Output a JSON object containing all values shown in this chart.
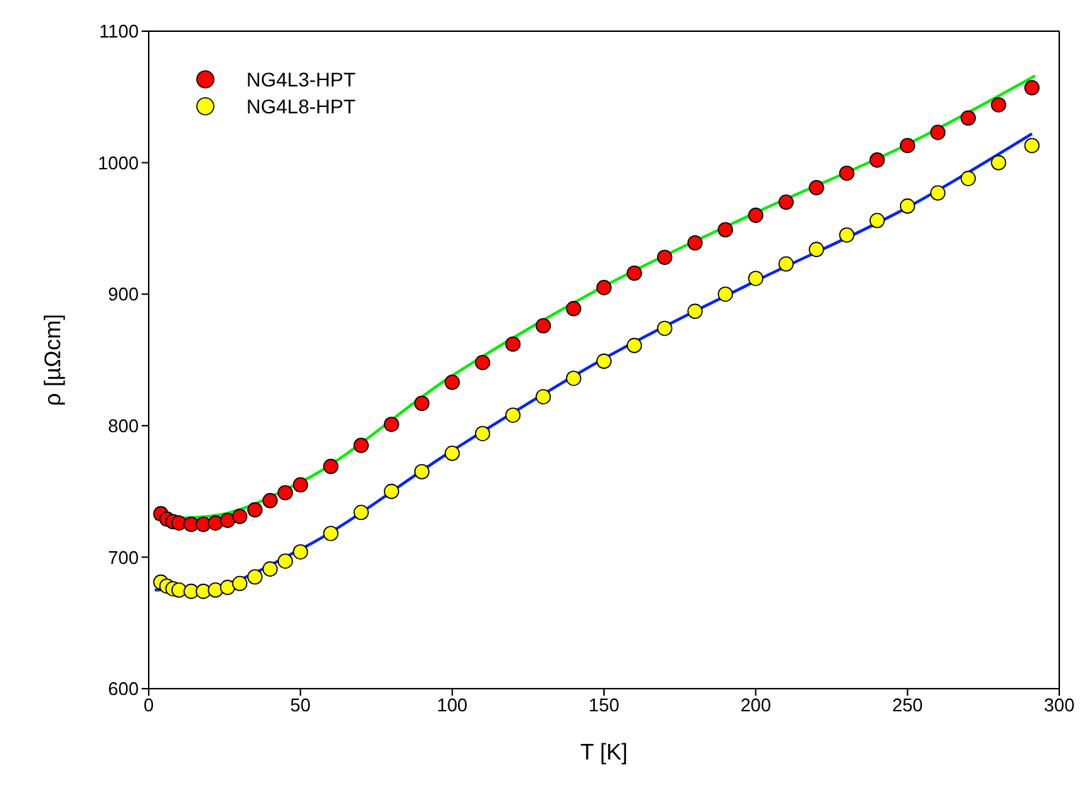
{
  "chart_data": {
    "type": "scatter",
    "xlabel": "T [K]",
    "ylabel": "ρ [µΩcm]",
    "xlim": [
      0,
      300
    ],
    "xticks": [
      0,
      50,
      100,
      150,
      200,
      250,
      300
    ],
    "ylim": [
      600,
      1100
    ],
    "yticks": [
      600,
      700,
      800,
      900,
      1000,
      1100
    ],
    "legend": "top left",
    "series": [
      {
        "name": "NG4L3-HPT",
        "marker": "circle",
        "color": "#ff0000",
        "x": [
          4,
          6,
          8,
          10,
          14,
          18,
          22,
          26,
          30,
          35,
          40,
          45,
          50,
          60,
          70,
          80,
          90,
          100,
          110,
          120,
          130,
          140,
          150,
          160,
          170,
          180,
          190,
          200,
          210,
          220,
          230,
          240,
          250,
          260,
          270,
          280,
          291
        ],
        "values": [
          733,
          729,
          727,
          726,
          725,
          725,
          726,
          728,
          731,
          736,
          743,
          749,
          755,
          769,
          785,
          801,
          817,
          833,
          848,
          862,
          876,
          889,
          905,
          916,
          928,
          939,
          949,
          960,
          970,
          981,
          992,
          1002,
          1013,
          1023,
          1034,
          1044,
          1057
        ]
      },
      {
        "name": "NG4L8-HPT",
        "marker": "circle",
        "color": "#ffff00",
        "x": [
          4,
          6,
          8,
          10,
          14,
          18,
          22,
          26,
          30,
          35,
          40,
          45,
          50,
          60,
          70,
          80,
          90,
          100,
          110,
          120,
          130,
          140,
          150,
          160,
          170,
          180,
          190,
          200,
          210,
          220,
          230,
          240,
          250,
          260,
          270,
          280,
          291
        ],
        "values": [
          681,
          678,
          676,
          675,
          674,
          674,
          675,
          677,
          680,
          685,
          691,
          697,
          704,
          718,
          734,
          750,
          765,
          779,
          794,
          808,
          822,
          836,
          849,
          861,
          874,
          887,
          900,
          912,
          923,
          934,
          945,
          956,
          967,
          977,
          988,
          1000,
          1013
        ]
      },
      {
        "type": "line",
        "marker": "none",
        "color": "#00ee00",
        "x": [
          2,
          20,
          50,
          100,
          150,
          200,
          250,
          292
        ],
        "values": [
          729,
          731,
          757,
          838,
          906,
          962,
          1014,
          1066
        ]
      },
      {
        "type": "line",
        "marker": "none",
        "color": "#0022ff",
        "x": [
          2,
          20,
          50,
          100,
          150,
          200,
          250,
          291
        ],
        "values": [
          675,
          677,
          706,
          781,
          851,
          910,
          966,
          1022
        ]
      }
    ]
  }
}
